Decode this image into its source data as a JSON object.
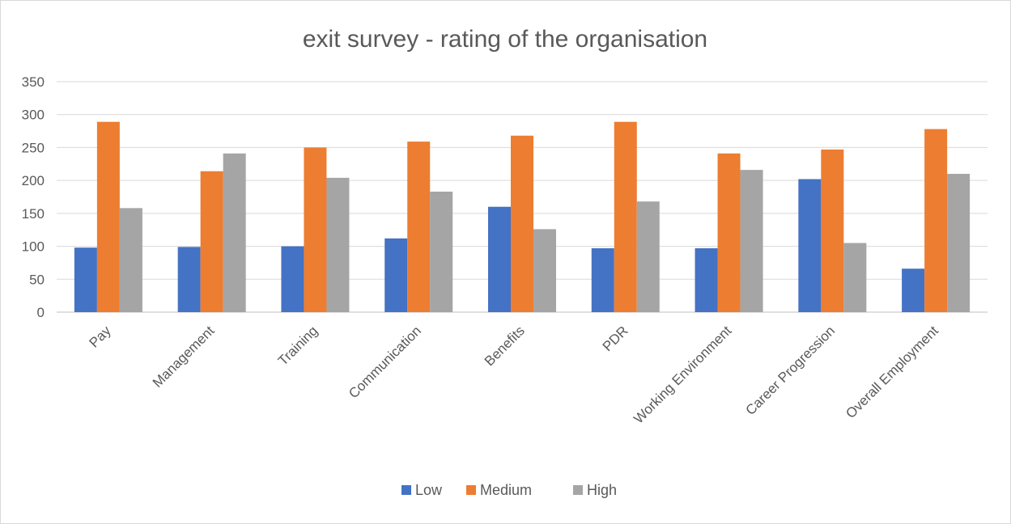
{
  "chart_data": {
    "type": "bar",
    "title": "exit survey - rating of the organisation",
    "xlabel": "",
    "ylabel": "",
    "ylim": [
      0,
      350
    ],
    "yticks": [
      0,
      50,
      100,
      150,
      200,
      250,
      300,
      350
    ],
    "grid": true,
    "legend_position": "bottom",
    "categories": [
      "Pay",
      "Management",
      "Training",
      "Communication",
      "Benefits",
      "PDR",
      "Working Environment",
      "Career Progression",
      "Overall Employment"
    ],
    "series": [
      {
        "name": "Low",
        "color": "#4472c4",
        "values": [
          98,
          99,
          100,
          112,
          160,
          97,
          97,
          202,
          66
        ]
      },
      {
        "name": "Medium",
        "color": "#ed7d31",
        "values": [
          289,
          214,
          250,
          259,
          268,
          289,
          241,
          247,
          278
        ]
      },
      {
        "name": "High",
        "color": "#a5a5a5",
        "values": [
          158,
          241,
          204,
          183,
          126,
          168,
          216,
          105,
          210
        ]
      }
    ]
  }
}
